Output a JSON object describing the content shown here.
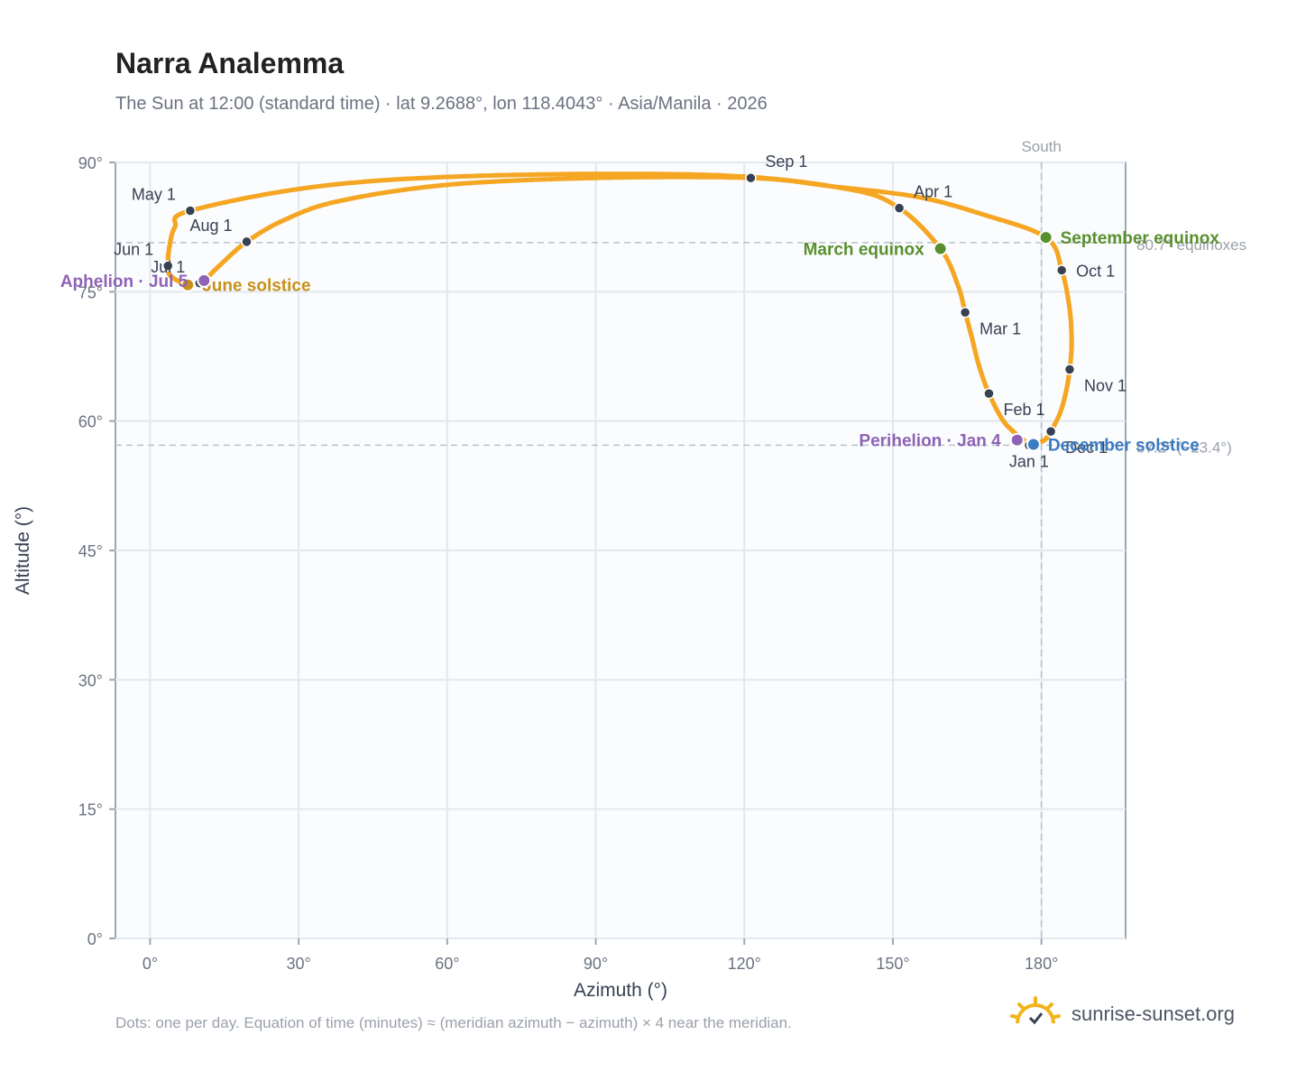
{
  "header": {
    "title": "Narra Analemma",
    "subtitle": "The Sun at 12:00 (standard time) · lat 9.2688°, lon 118.4043° · Asia/Manila · 2026"
  },
  "footer": {
    "note": "Dots: one per day. Equation of time (minutes) ≈ (meridian azimuth − azimuth) × 4 near the meridian.",
    "brand": "sunrise-sunset.org",
    "brand_icon": "sun-icon"
  },
  "colors": {
    "path": "#f5a623",
    "month_marker": "#374151",
    "equinox": "#5a8f2e",
    "june_solstice": "#c8901a",
    "december_solstice": "#3b7bbf",
    "perihelion_aphelion": "#8e63b5",
    "plot_bg": "#fafcfe",
    "grid": "#e3e8ee",
    "reference_line": "#b8c2cc"
  },
  "chart_data": {
    "type": "scatter",
    "title": "Narra Analemma",
    "subtitle": "The Sun at 12:00 (standard time) · lat 9.2688°, lon 118.4043° · Asia/Manila · 2026",
    "xlabel": "Azimuth (°)",
    "ylabel": "Altitude (°)",
    "xlim": [
      -7,
      197
    ],
    "ylim": [
      0,
      90
    ],
    "x_ticks": [
      0,
      30,
      60,
      90,
      120,
      150,
      180
    ],
    "x_tick_labels": [
      "0°",
      "30°",
      "60°",
      "90°",
      "120°",
      "150°",
      "180°"
    ],
    "y_ticks": [
      0,
      15,
      30,
      45,
      60,
      75,
      90
    ],
    "y_tick_labels": [
      "0°",
      "15°",
      "30°",
      "45°",
      "60°",
      "75°",
      "90°"
    ],
    "grid": true,
    "series_path": [
      {
        "date": "Jan 1",
        "az": 177.5,
        "alt": 57.2
      },
      {
        "date": "Jan 8",
        "az": 176.2,
        "alt": 57.9
      },
      {
        "date": "Jan 15",
        "az": 174.3,
        "alt": 58.8
      },
      {
        "date": "Jan 22",
        "az": 172.1,
        "alt": 60.2
      },
      {
        "date": "Feb 1",
        "az": 169.4,
        "alt": 63.2
      },
      {
        "date": "Feb 10",
        "az": 167.4,
        "alt": 66.4
      },
      {
        "date": "Feb 20",
        "az": 165.9,
        "alt": 69.8
      },
      {
        "date": "Mar 1",
        "az": 164.6,
        "alt": 72.6
      },
      {
        "date": "Mar 10",
        "az": 163.1,
        "alt": 75.8
      },
      {
        "date": "Mar 20",
        "az": 159.6,
        "alt": 80.0
      },
      {
        "date": "Apr 1",
        "az": 151.3,
        "alt": 84.7
      },
      {
        "date": "Apr 10",
        "az": 141.0,
        "alt": 86.9
      },
      {
        "date": "Apr 20",
        "az": 115.0,
        "alt": 88.5
      },
      {
        "date": "Apr 25",
        "az": 70.0,
        "alt": 88.5
      },
      {
        "date": "Apr 28",
        "az": 35.0,
        "alt": 87.3
      },
      {
        "date": "May 1",
        "az": 8.1,
        "alt": 84.4
      },
      {
        "date": "May 10",
        "az": 5.0,
        "alt": 82.5
      },
      {
        "date": "May 20",
        "az": 3.9,
        "alt": 80.2
      },
      {
        "date": "Jun 1",
        "az": 3.6,
        "alt": 78.0
      },
      {
        "date": "Jun 10",
        "az": 4.2,
        "alt": 76.8
      },
      {
        "date": "Jun 21",
        "az": 7.6,
        "alt": 75.8
      },
      {
        "date": "Jul 1",
        "az": 10.0,
        "alt": 76.0
      },
      {
        "date": "Jul 5",
        "az": 10.9,
        "alt": 76.3
      },
      {
        "date": "Jul 15",
        "az": 14.5,
        "alt": 78.3
      },
      {
        "date": "Aug 1",
        "az": 19.5,
        "alt": 80.8
      },
      {
        "date": "Aug 10",
        "az": 27.0,
        "alt": 83.3
      },
      {
        "date": "Aug 18",
        "az": 38.0,
        "alt": 85.5
      },
      {
        "date": "Aug 25",
        "az": 60.0,
        "alt": 87.4
      },
      {
        "date": "Aug 29",
        "az": 90.0,
        "alt": 88.2
      },
      {
        "date": "Sep 1",
        "az": 121.3,
        "alt": 88.2
      },
      {
        "date": "Sep 5",
        "az": 138.0,
        "alt": 87.2
      },
      {
        "date": "Sep 10",
        "az": 155.0,
        "alt": 86.0
      },
      {
        "date": "Sep 16",
        "az": 168.0,
        "alt": 84.0
      },
      {
        "date": "Sep 23",
        "az": 180.9,
        "alt": 81.3
      },
      {
        "date": "Oct 1",
        "az": 184.1,
        "alt": 77.5
      },
      {
        "date": "Oct 10",
        "az": 185.7,
        "alt": 73.0
      },
      {
        "date": "Oct 20",
        "az": 186.1,
        "alt": 69.0
      },
      {
        "date": "Nov 1",
        "az": 185.7,
        "alt": 66.0
      },
      {
        "date": "Nov 10",
        "az": 185.0,
        "alt": 63.5
      },
      {
        "date": "Nov 20",
        "az": 183.8,
        "alt": 61.0
      },
      {
        "date": "Dec 1",
        "az": 181.9,
        "alt": 58.8
      },
      {
        "date": "Dec 10",
        "az": 180.6,
        "alt": 57.8
      },
      {
        "date": "Dec 21",
        "az": 178.4,
        "alt": 57.3
      },
      {
        "date": "Jan 1",
        "az": 177.5,
        "alt": 57.2
      }
    ],
    "month_markers": [
      {
        "label": "Jan 1",
        "az": 177.5,
        "alt": 57.2,
        "anchor": "below"
      },
      {
        "label": "Feb 1",
        "az": 169.4,
        "alt": 63.2,
        "anchor": "below-right"
      },
      {
        "label": "Mar 1",
        "az": 164.6,
        "alt": 72.6,
        "anchor": "below-right"
      },
      {
        "label": "Apr 1",
        "az": 151.3,
        "alt": 84.7,
        "anchor": "above-right"
      },
      {
        "label": "May 1",
        "az": 8.1,
        "alt": 84.4,
        "anchor": "above-left"
      },
      {
        "label": "Jun 1",
        "az": 3.6,
        "alt": 78.0,
        "anchor": "above-left"
      },
      {
        "label": "Jul 1",
        "az": 10.0,
        "alt": 76.0,
        "anchor": "above-left"
      },
      {
        "label": "Aug 1",
        "az": 19.5,
        "alt": 80.8,
        "anchor": "above-left"
      },
      {
        "label": "Sep 1",
        "az": 121.3,
        "alt": 88.2,
        "anchor": "above-right"
      },
      {
        "label": "Oct 1",
        "az": 184.1,
        "alt": 77.5,
        "anchor": "right"
      },
      {
        "label": "Nov 1",
        "az": 185.7,
        "alt": 66.0,
        "anchor": "below-right"
      },
      {
        "label": "Dec 1",
        "az": 181.9,
        "alt": 58.8,
        "anchor": "below-right"
      }
    ],
    "events": [
      {
        "label": "March equinox",
        "az": 159.6,
        "alt": 80.0,
        "color_key": "equinox",
        "anchor": "left"
      },
      {
        "label": "September equinox",
        "az": 180.9,
        "alt": 81.3,
        "color_key": "equinox",
        "anchor": "right"
      },
      {
        "label": "June solstice",
        "az": 7.6,
        "alt": 75.8,
        "color_key": "june_solstice",
        "anchor": "right"
      },
      {
        "label": "December solstice",
        "az": 178.4,
        "alt": 57.3,
        "color_key": "december_solstice",
        "anchor": "right"
      },
      {
        "label": "Perihelion · Jan 4",
        "az": 175.1,
        "alt": 57.8,
        "color_key": "perihelion_aphelion",
        "anchor": "left"
      },
      {
        "label": "Aphelion · Jul 5",
        "az": 10.9,
        "alt": 76.3,
        "color_key": "perihelion_aphelion",
        "anchor": "left"
      }
    ],
    "reference_lines": [
      {
        "axis": "x",
        "value": 180,
        "label": "South"
      },
      {
        "axis": "y",
        "value": 80.7,
        "label": "80.7° equinoxes"
      },
      {
        "axis": "y",
        "value": 57.2,
        "label": "57.2° (−23.4°)"
      }
    ]
  }
}
